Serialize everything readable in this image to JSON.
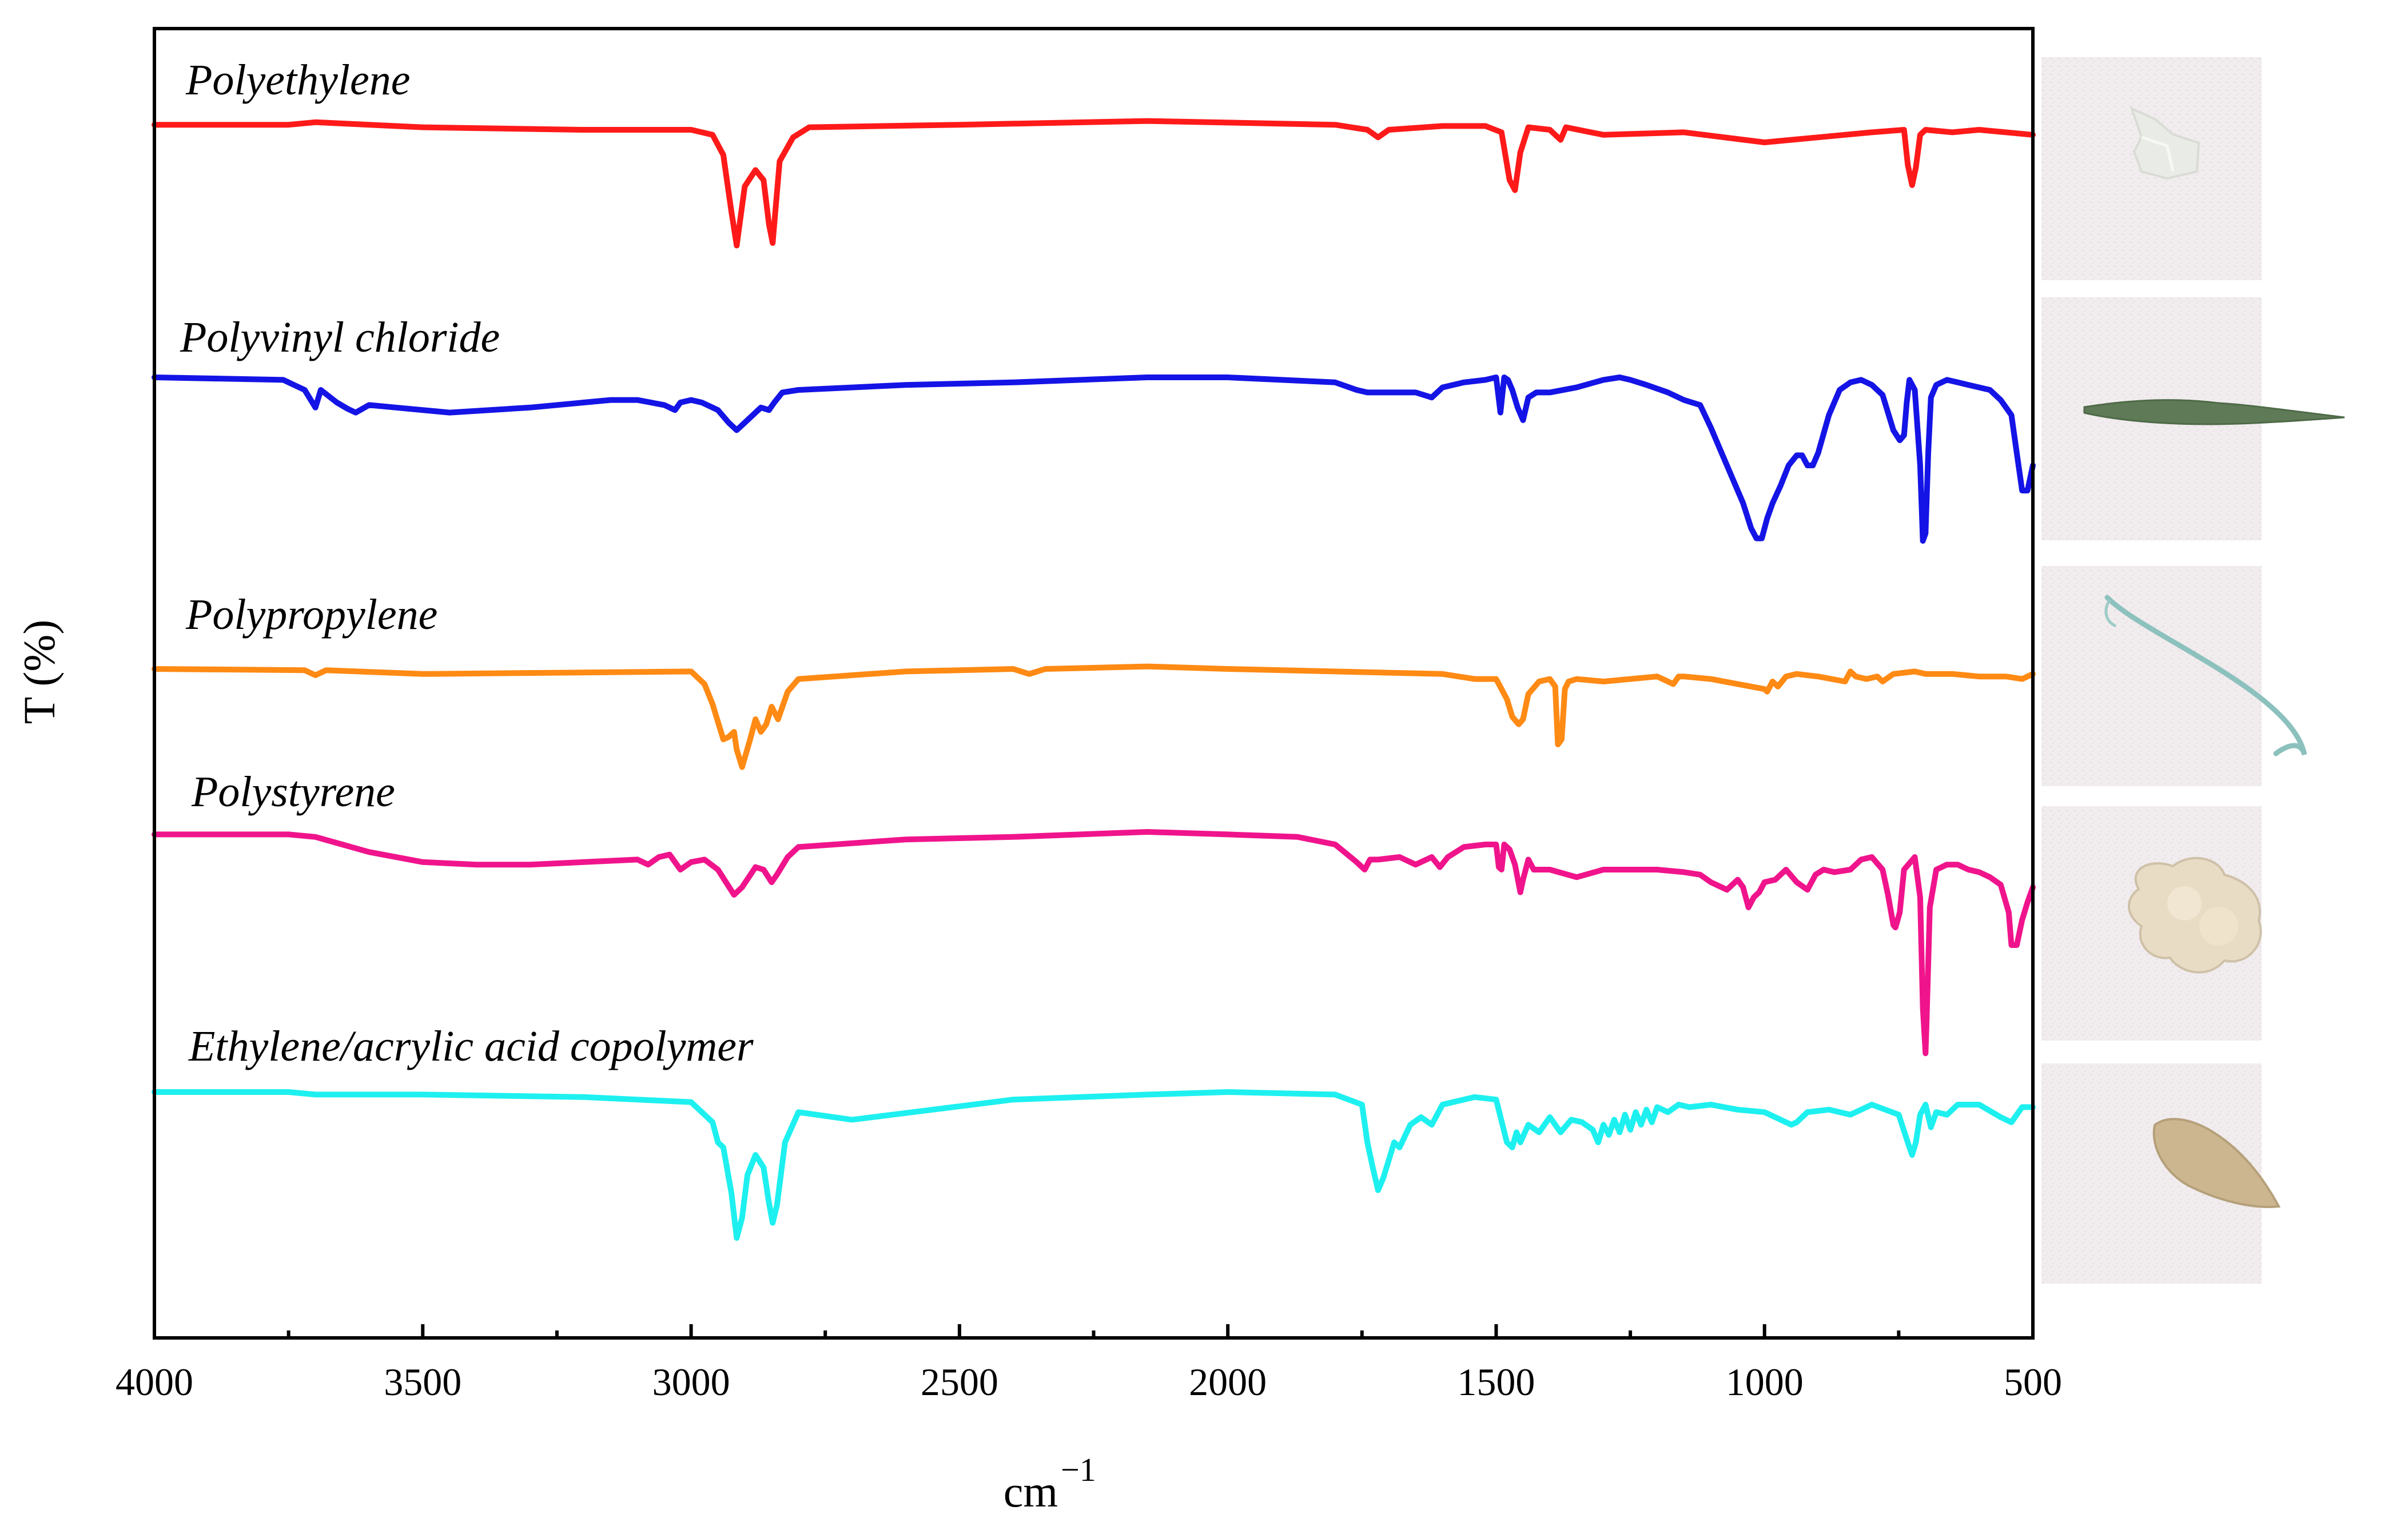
{
  "chart_data": {
    "type": "line",
    "title": "",
    "xlabel": "cm",
    "xlabel_superscript": "−1",
    "ylabel": "T (%)",
    "xlim": [
      4000,
      500
    ],
    "x_reversed": true,
    "grid": false,
    "x_ticks": [
      4000,
      3500,
      3000,
      2500,
      2000,
      1500,
      1000,
      500
    ],
    "x_tick_labels": [
      "4000",
      "3500",
      "3000",
      "2500",
      "2000",
      "1500",
      "1000",
      "500"
    ],
    "y_units": "relative transmittance, offset per spectrum (0 = top of band)",
    "series": [
      {
        "name": "Polyethylene",
        "color": "#ff1a1a",
        "x": [
          4000,
          3750,
          3700,
          3500,
          3200,
          3000,
          2960,
          2940,
          2925,
          2915,
          2900,
          2880,
          2865,
          2855,
          2848,
          2835,
          2810,
          2780,
          2500,
          2150,
          1800,
          1740,
          1720,
          1700,
          1600,
          1520,
          1490,
          1475,
          1465,
          1455,
          1440,
          1400,
          1380,
          1370,
          1300,
          1150,
          1000,
          900,
          800,
          740,
          733,
          725,
          718,
          710,
          700,
          650,
          600,
          500
        ],
        "y": [
          6,
          6,
          4,
          8,
          10,
          10,
          14,
          30,
          75,
          102,
          55,
          42,
          50,
          85,
          100,
          35,
          16,
          8,
          6,
          3,
          6,
          10,
          16,
          10,
          7,
          7,
          12,
          50,
          58,
          28,
          8,
          10,
          18,
          8,
          14,
          12,
          20,
          16,
          12,
          10,
          38,
          54,
          40,
          14,
          10,
          12,
          10,
          14
        ]
      },
      {
        "name": "Polyvinyl chloride",
        "color": "#1414e6",
        "x": [
          4000,
          3760,
          3720,
          3700,
          3690,
          3660,
          3640,
          3625,
          3600,
          3550,
          3450,
          3300,
          3150,
          3100,
          3050,
          3030,
          3020,
          3000,
          2980,
          2950,
          2930,
          2915,
          2895,
          2870,
          2855,
          2845,
          2830,
          2800,
          2600,
          2400,
          2150,
          2000,
          1800,
          1760,
          1740,
          1650,
          1620,
          1600,
          1560,
          1520,
          1500,
          1492,
          1485,
          1478,
          1470,
          1460,
          1450,
          1440,
          1425,
          1400,
          1350,
          1300,
          1270,
          1250,
          1220,
          1180,
          1150,
          1120,
          1100,
          1080,
          1060,
          1040,
          1025,
          1015,
          1005,
          995,
          985,
          970,
          955,
          940,
          930,
          920,
          910,
          900,
          880,
          860,
          840,
          820,
          800,
          780,
          760,
          748,
          740,
          735,
          730,
          720,
          710,
          705,
          700,
          695,
          690,
          680,
          660,
          640,
          620,
          600,
          580,
          560,
          540,
          530,
          520,
          510,
          500
        ],
        "y": [
          0,
          2,
          10,
          24,
          10,
          20,
          25,
          28,
          22,
          24,
          28,
          24,
          18,
          18,
          22,
          26,
          20,
          18,
          20,
          26,
          36,
          42,
          34,
          24,
          26,
          20,
          12,
          10,
          6,
          4,
          0,
          0,
          4,
          10,
          12,
          12,
          16,
          8,
          4,
          2,
          0,
          28,
          0,
          2,
          10,
          24,
          34,
          16,
          12,
          12,
          8,
          2,
          0,
          2,
          6,
          12,
          18,
          22,
          40,
          60,
          80,
          100,
          120,
          128,
          128,
          112,
          100,
          86,
          70,
          62,
          62,
          70,
          70,
          60,
          30,
          10,
          4,
          2,
          6,
          14,
          42,
          50,
          46,
          20,
          2,
          10,
          70,
          130,
          124,
          60,
          16,
          6,
          2,
          4,
          6,
          8,
          10,
          18,
          30,
          60,
          90,
          90,
          70
        ]
      },
      {
        "name": "Polypropylene",
        "color": "#ff8a14",
        "x": [
          4000,
          3720,
          3700,
          3680,
          3500,
          3000,
          2975,
          2960,
          2950,
          2940,
          2930,
          2920,
          2915,
          2905,
          2890,
          2880,
          2870,
          2860,
          2850,
          2838,
          2820,
          2800,
          2600,
          2400,
          2370,
          2340,
          2150,
          2000,
          1800,
          1600,
          1540,
          1500,
          1480,
          1470,
          1458,
          1450,
          1440,
          1420,
          1400,
          1390,
          1385,
          1378,
          1372,
          1365,
          1350,
          1300,
          1200,
          1170,
          1160,
          1150,
          1100,
          1050,
          1000,
          995,
          985,
          975,
          960,
          940,
          900,
          850,
          840,
          830,
          810,
          790,
          780,
          760,
          720,
          700,
          650,
          600,
          550,
          520,
          500
        ],
        "y": [
          0,
          1,
          5,
          1,
          4,
          2,
          12,
          28,
          42,
          56,
          54,
          50,
          64,
          78,
          56,
          40,
          50,
          44,
          30,
          40,
          18,
          8,
          2,
          0,
          4,
          0,
          -2,
          0,
          2,
          4,
          8,
          8,
          24,
          38,
          44,
          40,
          20,
          10,
          8,
          14,
          60,
          56,
          16,
          10,
          8,
          10,
          6,
          12,
          6,
          6,
          8,
          12,
          16,
          18,
          10,
          14,
          6,
          4,
          6,
          10,
          2,
          6,
          8,
          6,
          10,
          4,
          2,
          4,
          4,
          6,
          6,
          8,
          4
        ]
      },
      {
        "name": "Polystyrene",
        "color": "#f0148c",
        "x": [
          4000,
          3750,
          3700,
          3650,
          3600,
          3500,
          3400,
          3300,
          3200,
          3100,
          3080,
          3060,
          3040,
          3030,
          3020,
          3000,
          2975,
          2950,
          2935,
          2920,
          2905,
          2880,
          2865,
          2850,
          2840,
          2820,
          2800,
          2600,
          2400,
          2150,
          2000,
          1870,
          1800,
          1760,
          1745,
          1735,
          1720,
          1680,
          1650,
          1620,
          1605,
          1590,
          1560,
          1520,
          1500,
          1495,
          1490,
          1485,
          1475,
          1465,
          1455,
          1450,
          1440,
          1430,
          1400,
          1350,
          1300,
          1250,
          1200,
          1150,
          1120,
          1100,
          1070,
          1050,
          1040,
          1030,
          1020,
          1010,
          1000,
          980,
          960,
          940,
          920,
          905,
          890,
          870,
          840,
          820,
          800,
          780,
          770,
          760,
          756,
          748,
          740,
          720,
          710,
          705,
          700,
          698,
          692,
          680,
          660,
          640,
          620,
          600,
          580,
          560,
          545,
          540,
          530,
          520,
          510,
          500
        ],
        "y": [
          2,
          2,
          4,
          10,
          16,
          24,
          26,
          26,
          24,
          22,
          26,
          20,
          18,
          24,
          30,
          24,
          22,
          30,
          40,
          50,
          44,
          28,
          30,
          40,
          34,
          20,
          12,
          6,
          4,
          0,
          2,
          4,
          10,
          24,
          30,
          22,
          22,
          20,
          26,
          20,
          28,
          20,
          12,
          10,
          10,
          28,
          30,
          10,
          14,
          26,
          48,
          38,
          22,
          30,
          30,
          36,
          30,
          30,
          30,
          32,
          34,
          40,
          46,
          38,
          44,
          60,
          52,
          48,
          40,
          38,
          30,
          40,
          46,
          34,
          30,
          32,
          30,
          22,
          20,
          30,
          50,
          74,
          76,
          64,
          30,
          20,
          52,
          140,
          176,
          150,
          60,
          30,
          26,
          26,
          30,
          32,
          36,
          42,
          64,
          90,
          90,
          70,
          56,
          44
        ]
      },
      {
        "name": "Ethylene/acrylic acid copolymer",
        "color": "#1ef0f0",
        "x": [
          4000,
          3750,
          3700,
          3500,
          3200,
          3000,
          2960,
          2950,
          2940,
          2925,
          2915,
          2905,
          2895,
          2880,
          2865,
          2855,
          2848,
          2840,
          2825,
          2800,
          2700,
          2550,
          2400,
          2150,
          2000,
          1800,
          1750,
          1740,
          1730,
          1720,
          1710,
          1700,
          1690,
          1680,
          1660,
          1640,
          1620,
          1600,
          1540,
          1500,
          1480,
          1470,
          1462,
          1455,
          1440,
          1420,
          1400,
          1380,
          1360,
          1340,
          1320,
          1310,
          1300,
          1290,
          1280,
          1270,
          1260,
          1250,
          1240,
          1230,
          1220,
          1210,
          1200,
          1180,
          1160,
          1140,
          1100,
          1050,
          1000,
          950,
          940,
          920,
          880,
          840,
          800,
          750,
          730,
          725,
          718,
          710,
          700,
          690,
          680,
          660,
          640,
          600,
          560,
          540,
          520,
          500
        ],
        "y": [
          0,
          0,
          2,
          2,
          4,
          8,
          24,
          40,
          44,
          80,
          116,
          100,
          66,
          50,
          60,
          88,
          104,
          90,
          40,
          16,
          22,
          14,
          6,
          2,
          0,
          2,
          10,
          40,
          60,
          78,
          68,
          54,
          40,
          44,
          26,
          20,
          26,
          10,
          4,
          6,
          40,
          44,
          32,
          40,
          26,
          32,
          20,
          32,
          22,
          24,
          30,
          40,
          26,
          34,
          22,
          32,
          18,
          30,
          16,
          26,
          14,
          24,
          12,
          16,
          10,
          12,
          10,
          14,
          16,
          26,
          24,
          16,
          14,
          18,
          10,
          18,
          44,
          50,
          40,
          18,
          10,
          28,
          16,
          18,
          10,
          10,
          20,
          24,
          12,
          12
        ]
      }
    ]
  },
  "photos": [
    {
      "name": "Polyethylene sample",
      "subject": "clear-film-fragment"
    },
    {
      "name": "Polyvinyl chloride sample",
      "subject": "green-blade-fragment"
    },
    {
      "name": "Polypropylene sample",
      "subject": "teal-fiber"
    },
    {
      "name": "Polystyrene sample",
      "subject": "white-foam-clump"
    },
    {
      "name": "Ethylene/acrylic acid copolymer sample",
      "subject": "tan-pellet"
    }
  ]
}
